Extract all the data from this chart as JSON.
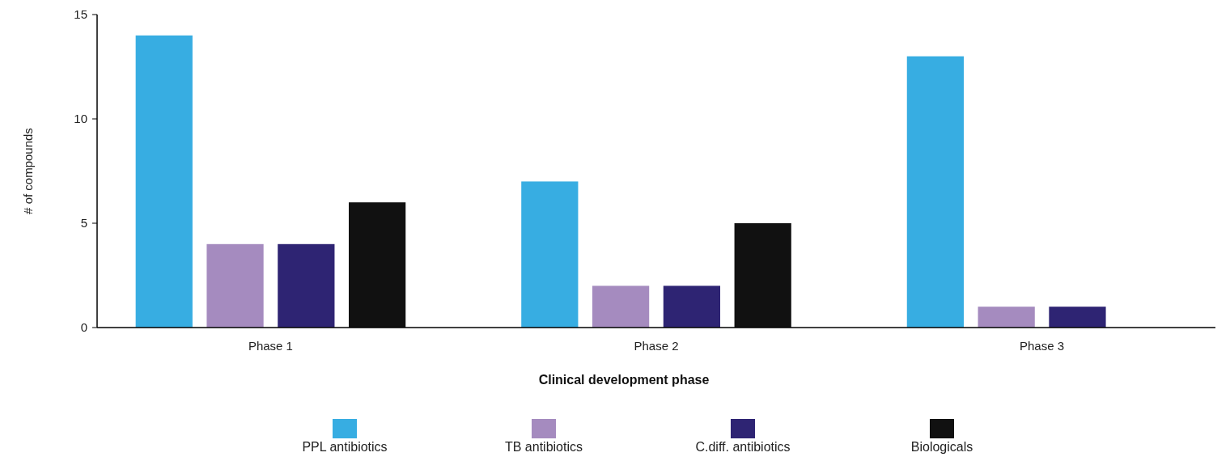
{
  "chart_data": {
    "type": "bar",
    "xlabel": "Clinical development phase",
    "ylabel": "# of compounds",
    "categories": [
      "Phase 1",
      "Phase 2",
      "Phase 3"
    ],
    "series": [
      {
        "name": "PPL antibiotics",
        "color": "#37ade2",
        "values": [
          14,
          7,
          13
        ]
      },
      {
        "name": "TB antibiotics",
        "color": "#a58bbf",
        "values": [
          4,
          2,
          1
        ]
      },
      {
        "name": "C.diff. antibiotics",
        "color": "#2e2473",
        "values": [
          4,
          2,
          1
        ]
      },
      {
        "name": "Biologicals",
        "color": "#111111",
        "values": [
          6,
          5,
          null
        ]
      }
    ],
    "ylim": [
      0,
      15
    ],
    "yticks": [
      0,
      5,
      10,
      15
    ],
    "grid": false,
    "legend": "bottom"
  }
}
